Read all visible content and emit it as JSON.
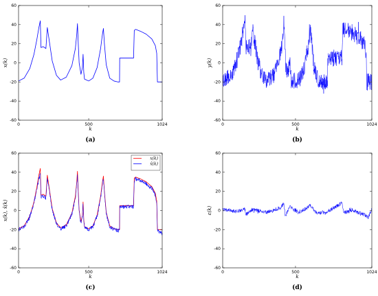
{
  "chart_data": [
    {
      "type": "line",
      "panel": "a",
      "caption": "(a)",
      "xlabel": "k",
      "ylabel": "x(k)",
      "xlim": [
        0,
        1024
      ],
      "ylim": [
        -60,
        60
      ],
      "xticks": [
        "0",
        "500",
        "1024"
      ],
      "yticks": [
        "-60",
        "-40",
        "-20",
        "0",
        "20",
        "40",
        "60"
      ],
      "series": [
        {
          "color": "#0000ff",
          "style": "smooth",
          "x": [
            0,
            40,
            80,
            110,
            130,
            145,
            155,
            160,
            175,
            195,
            205,
            215,
            240,
            270,
            300,
            340,
            380,
            405,
            415,
            420,
            425,
            432,
            445,
            455,
            460,
            465,
            470,
            500,
            530,
            560,
            585,
            598,
            605,
            612,
            625,
            650,
            680,
            710,
            720,
            721,
            820,
            822,
            825,
            835,
            870,
            910,
            950,
            975,
            985,
            990,
            1024
          ],
          "y": [
            -19,
            -16,
            -6,
            9,
            24,
            37,
            44,
            16,
            17,
            15,
            37,
            27,
            2,
            -13,
            -18,
            -15,
            -3,
            15,
            30,
            41,
            22,
            0,
            -12,
            -5,
            9,
            -10,
            -17,
            -19,
            -16,
            -5,
            15,
            30,
            36,
            20,
            -2,
            -16,
            -19,
            -20,
            -20,
            5,
            5,
            17,
            34,
            35,
            33,
            30,
            25,
            18,
            10,
            -20,
            -20
          ]
        }
      ]
    },
    {
      "type": "line",
      "panel": "b",
      "caption": "(b)",
      "xlabel": "k",
      "ylabel": "y(k)",
      "xlim": [
        0,
        1024
      ],
      "ylim": [
        -60,
        60
      ],
      "xticks": [
        "0",
        "500",
        "1024"
      ],
      "yticks": [
        "-60",
        "-40",
        "-20",
        "0",
        "20",
        "40",
        "60"
      ],
      "series": [
        {
          "color": "#0000ff",
          "style": "noisy",
          "x": [
            0,
            40,
            80,
            110,
            130,
            145,
            155,
            160,
            175,
            195,
            205,
            215,
            240,
            270,
            300,
            340,
            380,
            405,
            415,
            420,
            425,
            432,
            445,
            455,
            460,
            465,
            470,
            500,
            530,
            560,
            585,
            598,
            605,
            612,
            625,
            650,
            680,
            710,
            720,
            721,
            820,
            822,
            825,
            835,
            870,
            910,
            950,
            975,
            985,
            990,
            1024
          ],
          "y": [
            -19,
            -16,
            -6,
            9,
            24,
            37,
            44,
            16,
            17,
            15,
            37,
            27,
            2,
            -13,
            -18,
            -15,
            -3,
            15,
            30,
            41,
            22,
            0,
            -12,
            -5,
            9,
            -10,
            -17,
            -19,
            -16,
            -5,
            15,
            30,
            36,
            20,
            -2,
            -16,
            -19,
            -20,
            -20,
            5,
            5,
            17,
            34,
            35,
            33,
            30,
            25,
            18,
            10,
            -20,
            -20
          ],
          "noise": 9
        }
      ]
    },
    {
      "type": "line",
      "panel": "c",
      "caption": "(c)",
      "xlabel": "k",
      "ylabel": "x(k), x̂(k)",
      "xlim": [
        0,
        1024
      ],
      "ylim": [
        -60,
        60
      ],
      "xticks": [
        "0",
        "500",
        "1024"
      ],
      "yticks": [
        "-60",
        "-40",
        "-20",
        "0",
        "20",
        "40",
        "60"
      ],
      "legend": "top-right",
      "series": [
        {
          "name": "x(k)",
          "color": "#ff0000",
          "style": "smooth",
          "x": [
            0,
            40,
            80,
            110,
            130,
            145,
            155,
            160,
            175,
            195,
            205,
            215,
            240,
            270,
            300,
            340,
            380,
            405,
            415,
            420,
            425,
            432,
            445,
            455,
            460,
            465,
            470,
            500,
            530,
            560,
            585,
            598,
            605,
            612,
            625,
            650,
            680,
            710,
            720,
            721,
            820,
            822,
            825,
            835,
            870,
            910,
            950,
            975,
            985,
            990,
            1024
          ],
          "y": [
            -19,
            -16,
            -6,
            9,
            24,
            37,
            44,
            16,
            17,
            15,
            37,
            27,
            2,
            -13,
            -18,
            -15,
            -3,
            15,
            30,
            41,
            22,
            0,
            -12,
            -5,
            9,
            -10,
            -17,
            -19,
            -16,
            -5,
            15,
            30,
            36,
            20,
            -2,
            -16,
            -19,
            -20,
            -20,
            5,
            5,
            17,
            34,
            35,
            33,
            30,
            25,
            18,
            10,
            -20,
            -20
          ]
        },
        {
          "name": "x̂(k)",
          "color": "#0000ff",
          "style": "noisy",
          "x": [
            0,
            40,
            80,
            110,
            130,
            145,
            155,
            160,
            175,
            195,
            205,
            215,
            240,
            270,
            300,
            340,
            380,
            405,
            415,
            420,
            425,
            432,
            445,
            455,
            460,
            465,
            470,
            500,
            530,
            560,
            585,
            598,
            605,
            612,
            625,
            650,
            680,
            710,
            720,
            721,
            820,
            822,
            825,
            835,
            870,
            910,
            950,
            975,
            985,
            990,
            1024
          ],
          "y": [
            -20,
            -17,
            -7,
            8,
            22,
            33,
            38,
            14,
            15,
            13,
            33,
            25,
            1,
            -14,
            -19,
            -16,
            -4,
            13,
            28,
            36,
            20,
            -1,
            -13,
            -6,
            7,
            -11,
            -18,
            -20,
            -17,
            -6,
            13,
            28,
            33,
            18,
            -3,
            -17,
            -20,
            -21,
            -21,
            4,
            4,
            16,
            31,
            33,
            31,
            28,
            23,
            16,
            8,
            -21,
            -24
          ],
          "noise": 2
        }
      ]
    },
    {
      "type": "line",
      "panel": "d",
      "caption": "(d)",
      "xlabel": "k",
      "ylabel": "ε(k)",
      "xlim": [
        0,
        1024
      ],
      "ylim": [
        -60,
        60
      ],
      "xticks": [
        "0",
        "500",
        "1024"
      ],
      "yticks": [
        "-60",
        "-40",
        "-20",
        "0",
        "20",
        "40",
        "60"
      ],
      "series": [
        {
          "color": "#0000ff",
          "style": "noisy",
          "x": [
            0,
            100,
            150,
            160,
            200,
            300,
            400,
            420,
            430,
            460,
            520,
            560,
            600,
            650,
            720,
            820,
            830,
            900,
            980,
            1000,
            1024
          ],
          "y": [
            1,
            -1,
            2,
            -4,
            1,
            -2,
            3,
            8,
            -6,
            4,
            -2,
            1,
            5,
            -3,
            -1,
            8,
            -2,
            0,
            -5,
            -8,
            2
          ],
          "noise": 2
        }
      ]
    }
  ]
}
